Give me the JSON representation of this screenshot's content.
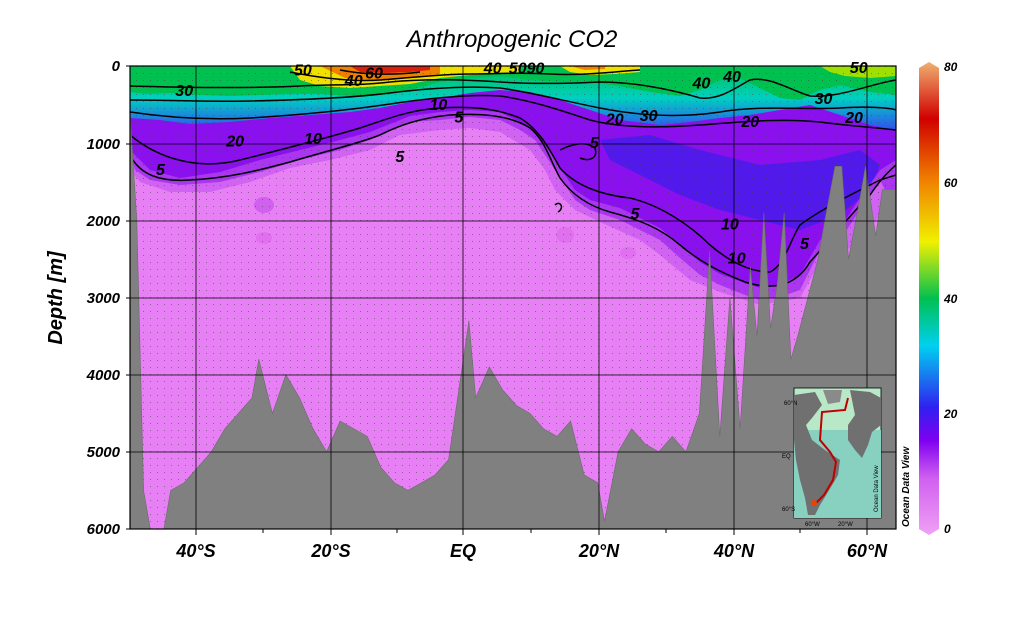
{
  "chart_data": {
    "type": "heatmap",
    "title": "Anthropogenic CO2",
    "xlabel": "",
    "ylabel": "Depth [m]",
    "x_range": [
      -50,
      63
    ],
    "xticks": [
      {
        "value": -40,
        "label": "40°S"
      },
      {
        "value": -20,
        "label": "20°S"
      },
      {
        "value": 0,
        "label": "EQ"
      },
      {
        "value": 20,
        "label": "20°N"
      },
      {
        "value": 40,
        "label": "40°N"
      },
      {
        "value": 60,
        "label": "60°N"
      }
    ],
    "ylim": [
      6000,
      0
    ],
    "yticks": [
      0,
      1000,
      2000,
      3000,
      4000,
      5000,
      6000
    ],
    "colorbar": {
      "min": 0,
      "max": 80,
      "ticks": [
        0,
        20,
        40,
        60,
        80
      ],
      "colors": [
        "#f0a0f5",
        "#d060f0",
        "#8000f0",
        "#3020f0",
        "#00d0f0",
        "#00c050",
        "#f0f000",
        "#f08000",
        "#d00000",
        "#f0b070"
      ]
    },
    "contour_levels": [
      5,
      10,
      20,
      30,
      40,
      50,
      60
    ],
    "contour_labels": [
      {
        "lat": -10.2,
        "depth": 1245,
        "value": "5"
      },
      {
        "lat": -45.5,
        "depth": 1410,
        "value": "5"
      },
      {
        "lat": -34.5,
        "depth": 1040,
        "value": "20"
      },
      {
        "lat": -23,
        "depth": 1010,
        "value": "10"
      },
      {
        "lat": -4.5,
        "depth": 570,
        "value": "10"
      },
      {
        "lat": -1.5,
        "depth": 730,
        "value": "5"
      },
      {
        "lat": -42,
        "depth": 390,
        "value": "30"
      },
      {
        "lat": -24.5,
        "depth": 120,
        "value": "50"
      },
      {
        "lat": -17,
        "depth": 260,
        "value": "40"
      },
      {
        "lat": -14,
        "depth": 160,
        "value": "60"
      },
      {
        "lat": 3.5,
        "depth": 100,
        "value": "40"
      },
      {
        "lat": 8.5,
        "depth": 100,
        "value": "5090"
      },
      {
        "lat": 21.5,
        "depth": 760,
        "value": "20"
      },
      {
        "lat": 26.5,
        "depth": 710,
        "value": "30"
      },
      {
        "lat": 18.5,
        "depth": 1060,
        "value": "5"
      },
      {
        "lat": 24.5,
        "depth": 1980,
        "value": "5"
      },
      {
        "lat": 34.3,
        "depth": 290,
        "value": "40"
      },
      {
        "lat": 38.8,
        "depth": 210,
        "value": "40"
      },
      {
        "lat": 41.5,
        "depth": 790,
        "value": "20"
      },
      {
        "lat": 52.3,
        "depth": 490,
        "value": "30"
      },
      {
        "lat": 56.8,
        "depth": 740,
        "value": "20"
      },
      {
        "lat": 57.5,
        "depth": 90,
        "value": "50"
      },
      {
        "lat": 38.5,
        "depth": 2120,
        "value": "10"
      },
      {
        "lat": 39.5,
        "depth": 2560,
        "value": "10"
      },
      {
        "lat": 49.5,
        "depth": 2370,
        "value": "5"
      }
    ],
    "bathymetry": [
      [
        -50,
        600
      ],
      [
        -49,
        2000
      ],
      [
        -48,
        5500
      ],
      [
        -47,
        6000
      ],
      [
        -45,
        6000
      ],
      [
        -44,
        5500
      ],
      [
        -42,
        5400
      ],
      [
        -40,
        5200
      ],
      [
        -38,
        5000
      ],
      [
        -36,
        4700
      ],
      [
        -34,
        4500
      ],
      [
        -32,
        4300
      ],
      [
        -31,
        3800
      ],
      [
        -29,
        4500
      ],
      [
        -27,
        4000
      ],
      [
        -25,
        4300
      ],
      [
        -23,
        4700
      ],
      [
        -21,
        5000
      ],
      [
        -19,
        4600
      ],
      [
        -17,
        4700
      ],
      [
        -15,
        4800
      ],
      [
        -13,
        5200
      ],
      [
        -11,
        5400
      ],
      [
        -9,
        5500
      ],
      [
        -7,
        5400
      ],
      [
        -5,
        5300
      ],
      [
        -3,
        5100
      ],
      [
        -1,
        3900
      ],
      [
        0,
        3300
      ],
      [
        1,
        4300
      ],
      [
        3,
        3900
      ],
      [
        5,
        4200
      ],
      [
        7,
        4400
      ],
      [
        9,
        4500
      ],
      [
        11,
        4700
      ],
      [
        13,
        4800
      ],
      [
        15,
        4600
      ],
      [
        17,
        5300
      ],
      [
        19,
        5400
      ],
      [
        20,
        5900
      ],
      [
        22,
        5000
      ],
      [
        24,
        4700
      ],
      [
        26,
        4900
      ],
      [
        28,
        5000
      ],
      [
        30,
        4800
      ],
      [
        32,
        5000
      ],
      [
        34,
        4500
      ],
      [
        35.5,
        2400
      ],
      [
        37,
        4800
      ],
      [
        38.5,
        3000
      ],
      [
        40,
        4700
      ],
      [
        41.5,
        2600
      ],
      [
        42.5,
        3500
      ],
      [
        43.5,
        1900
      ],
      [
        44.5,
        3400
      ],
      [
        45.5,
        2800
      ],
      [
        46.5,
        1900
      ],
      [
        47.5,
        3800
      ],
      [
        48.5,
        3500
      ],
      [
        50,
        3000
      ],
      [
        51.5,
        2500
      ],
      [
        52.5,
        2000
      ],
      [
        54,
        1300
      ],
      [
        55,
        1300
      ],
      [
        56,
        2500
      ],
      [
        57.5,
        1800
      ],
      [
        58.5,
        1300
      ],
      [
        60,
        2200
      ],
      [
        61,
        1600
      ],
      [
        63,
        1600
      ]
    ],
    "inset_map": {
      "lat_labels": [
        "60°N",
        "EQ",
        "60°S"
      ],
      "lon_labels": [
        "60°W",
        "20°W"
      ],
      "credit": "Ocean Data View"
    },
    "watermark": "Ocean Data View",
    "grid": true
  }
}
